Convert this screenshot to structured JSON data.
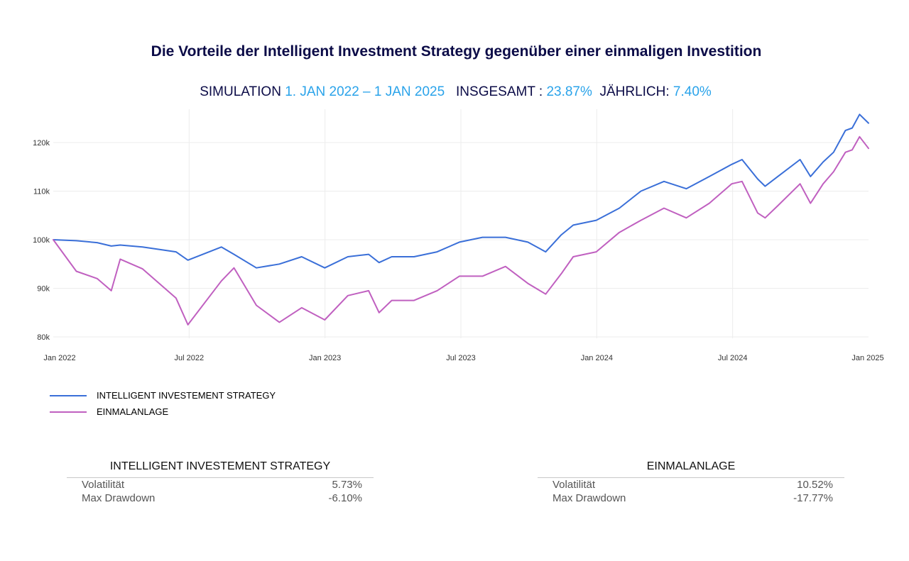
{
  "title": "Die Vorteile der Intelligent Investment Strategy gegenüber einer einmaligen Investition",
  "subtitle": {
    "sim_label": "SIMULATION",
    "period": "1. JAN 2022 – 1 JAN 2025",
    "total_label": "INSGESAMT :",
    "total_value": "23.87%",
    "annual_label": "JÄHRLICH:",
    "annual_value": "7.40%"
  },
  "colors": {
    "intelligent": "#3a6fd8",
    "einmal": "#c060c0",
    "highlight": "#2aa3ea",
    "title": "#0b0b47"
  },
  "chart_data": {
    "type": "line",
    "title": "",
    "xlabel": "",
    "ylabel": "",
    "x_ticks": [
      "Jan 2022",
      "Jul 2022",
      "Jan 2023",
      "Jul 2023",
      "Jan 2024",
      "Jul 2024",
      "Jan 2025"
    ],
    "y_ticks": [
      "80k",
      "90k",
      "100k",
      "110k",
      "120k"
    ],
    "ylim": [
      80000,
      126000
    ],
    "xlim": [
      "2022-01-01",
      "2025-01-01"
    ],
    "grid": true,
    "legend": "bottom-left",
    "x": [
      "2022-01-01",
      "2022-02-01",
      "2022-03-01",
      "2022-03-20",
      "2022-04-01",
      "2022-05-01",
      "2022-06-15",
      "2022-07-01",
      "2022-08-15",
      "2022-09-01",
      "2022-10-01",
      "2022-11-01",
      "2022-12-01",
      "2023-01-01",
      "2023-02-01",
      "2023-03-01",
      "2023-03-15",
      "2023-04-01",
      "2023-05-01",
      "2023-06-01",
      "2023-07-01",
      "2023-08-01",
      "2023-09-01",
      "2023-10-01",
      "2023-10-25",
      "2023-11-15",
      "2023-12-01",
      "2024-01-01",
      "2024-02-01",
      "2024-03-01",
      "2024-04-01",
      "2024-05-01",
      "2024-06-01",
      "2024-07-01",
      "2024-07-15",
      "2024-08-05",
      "2024-08-15",
      "2024-09-01",
      "2024-10-01",
      "2024-10-15",
      "2024-11-01",
      "2024-11-15",
      "2024-12-01",
      "2024-12-10",
      "2024-12-20",
      "2025-01-01"
    ],
    "series": [
      {
        "name": "INTELLIGENT INVESTEMENT STRATEGY",
        "values": [
          100000,
          99800,
          99400,
          98700,
          98900,
          98500,
          97500,
          95800,
          98500,
          97000,
          94200,
          95000,
          96500,
          94200,
          96500,
          97000,
          95300,
          96500,
          96500,
          97500,
          99500,
          100500,
          100500,
          99500,
          97500,
          101000,
          103000,
          104000,
          106500,
          110000,
          112000,
          110500,
          113000,
          115500,
          116500,
          112500,
          111000,
          113000,
          116500,
          113000,
          116000,
          118000,
          122500,
          123000,
          125800,
          124000
        ]
      },
      {
        "name": "EINMALANLAGE",
        "values": [
          100000,
          93500,
          92000,
          89500,
          96000,
          94000,
          88000,
          82500,
          91500,
          94200,
          86500,
          83000,
          86000,
          83500,
          88500,
          89500,
          85000,
          87500,
          87500,
          89500,
          92500,
          92500,
          94500,
          91000,
          88800,
          93000,
          96500,
          97500,
          101500,
          104000,
          106500,
          104500,
          107500,
          111500,
          112000,
          105500,
          104500,
          107000,
          111500,
          107500,
          111500,
          114000,
          118000,
          118500,
          121200,
          118800
        ]
      }
    ]
  },
  "legend": [
    {
      "label": "INTELLIGENT INVESTEMENT STRATEGY",
      "color": "#3a6fd8"
    },
    {
      "label": "EINMALANLAGE",
      "color": "#c060c0"
    }
  ],
  "stats": {
    "left": {
      "title": "INTELLIGENT INVESTEMENT STRATEGY",
      "rows": [
        {
          "label": "Volatilität",
          "value": "5.73%"
        },
        {
          "label": "Max Drawdown",
          "value": "-6.10%"
        }
      ]
    },
    "right": {
      "title": "EINMALANLAGE",
      "rows": [
        {
          "label": "Volatilität",
          "value": "10.52%"
        },
        {
          "label": "Max Drawdown",
          "value": "-17.77%"
        }
      ]
    }
  }
}
